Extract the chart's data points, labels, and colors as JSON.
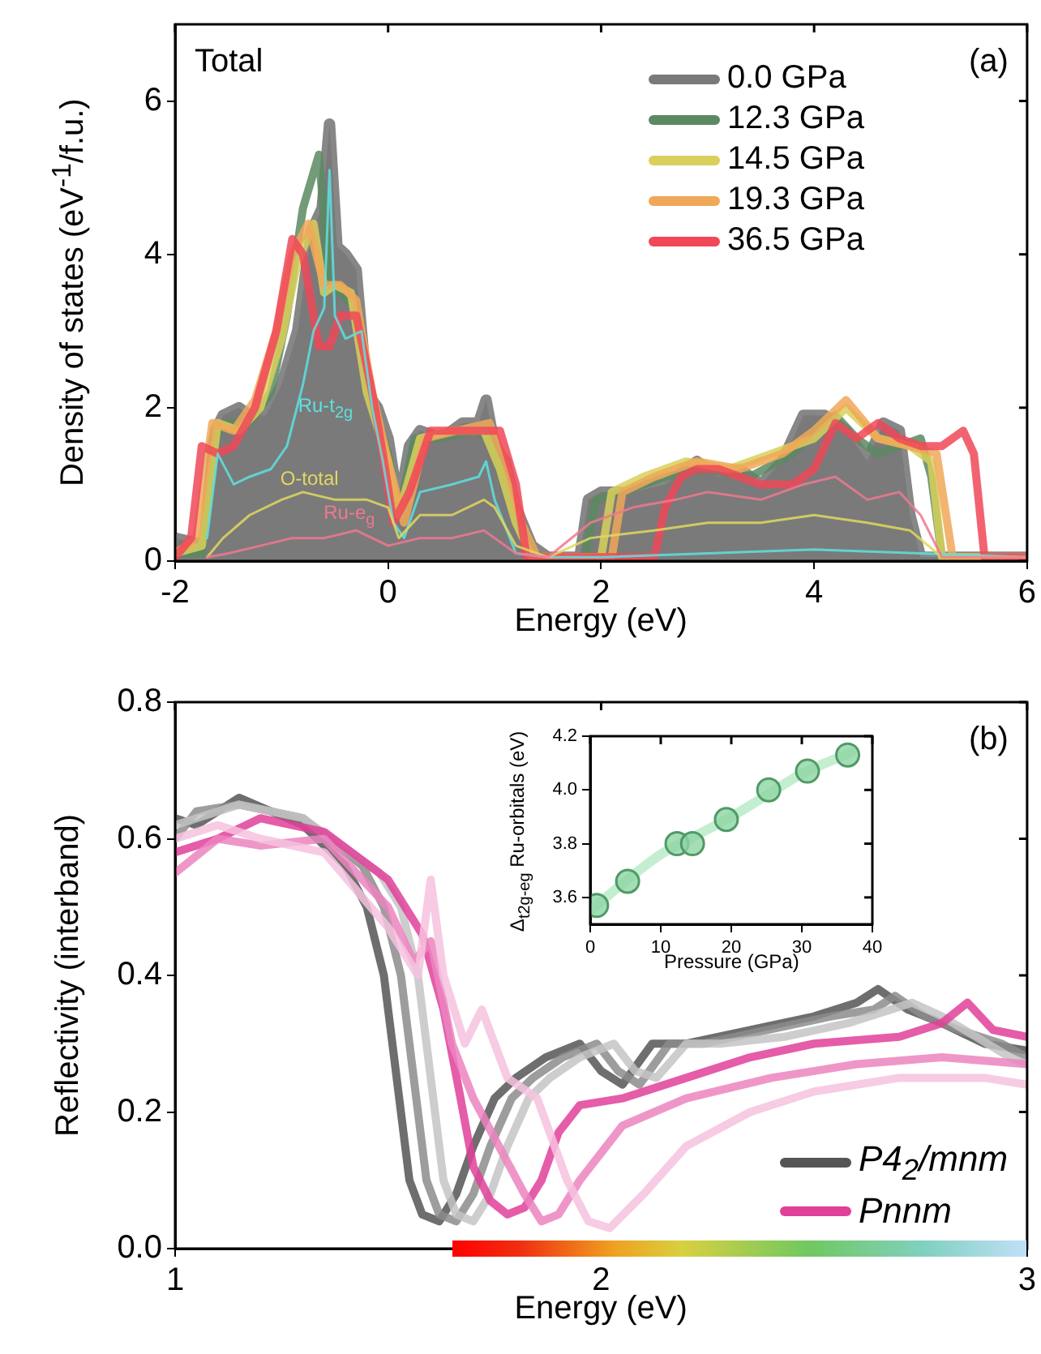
{
  "chart_data": [
    {
      "type": "line",
      "xlabel": "Energy (eV)",
      "ylabel": "Density of states (eV$^{-1}$/f.u.)",
      "xlim": [
        -2,
        6
      ],
      "xticks": [
        -2,
        0,
        2,
        4,
        6
      ],
      "ylim": [
        0,
        7
      ],
      "yticks": [
        0,
        2,
        4,
        6
      ],
      "legend": "top right",
      "annotations": [
        "Total",
        "(a)"
      ],
      "series": [
        {
          "type": "area",
          "name": "0.0 GPa",
          "color": "#7a7a7a",
          "x": [
            -2,
            -1.7,
            -1.62,
            -1.55,
            -1.4,
            -1.3,
            -1.15,
            -1.0,
            -0.85,
            -0.72,
            -0.62,
            -0.55,
            -0.48,
            -0.4,
            -0.3,
            -0.2,
            -0.1,
            0.0,
            0.1,
            0.2,
            0.3,
            0.5,
            0.7,
            0.85,
            0.92,
            1.0,
            1.1,
            1.2,
            1.35,
            1.5,
            1.8,
            1.88,
            2.0,
            2.3,
            2.6,
            2.9,
            3.1,
            3.3,
            3.5,
            3.7,
            3.9,
            4.1,
            4.3,
            4.5,
            4.65,
            4.8,
            4.9,
            5.0,
            6
          ],
          "values": [
            0.3,
            0.2,
            1.7,
            1.9,
            2.0,
            1.9,
            1.9,
            2.3,
            3.0,
            4.3,
            4.6,
            5.7,
            4.1,
            4.0,
            3.8,
            2.2,
            2.0,
            1.6,
            0.7,
            1.5,
            1.7,
            1.6,
            1.8,
            1.8,
            2.1,
            1.5,
            1.3,
            0.7,
            0.2,
            0.05,
            0.05,
            0.8,
            0.9,
            0.9,
            1.0,
            1.3,
            1.1,
            1.2,
            1.0,
            1.3,
            1.9,
            1.9,
            1.7,
            1.3,
            1.8,
            1.7,
            0.6,
            0.05,
            0.05
          ]
        },
        {
          "name": "12.3 GPa",
          "color": "#5a8a62",
          "x": [
            -2,
            -1.75,
            -1.65,
            -1.5,
            -1.3,
            -1.1,
            -0.95,
            -0.8,
            -0.65,
            -0.55,
            -0.45,
            -0.3,
            -0.15,
            0.0,
            0.1,
            0.25,
            0.5,
            0.8,
            0.95,
            1.1,
            1.25,
            1.4,
            1.6,
            1.85,
            1.95,
            2.2,
            2.6,
            3.0,
            3.4,
            3.8,
            4.0,
            4.2,
            4.4,
            4.6,
            4.8,
            5.0,
            5.1,
            5.2,
            6
          ],
          "values": [
            0.1,
            0.1,
            1.6,
            1.8,
            1.8,
            2.2,
            3.2,
            4.6,
            5.3,
            3.6,
            3.5,
            3.3,
            2.0,
            1.4,
            0.6,
            1.6,
            1.6,
            1.7,
            1.6,
            1.0,
            0.4,
            0.05,
            0.05,
            0.05,
            0.8,
            0.9,
            1.1,
            1.2,
            1.1,
            1.4,
            1.7,
            1.9,
            1.6,
            1.4,
            1.5,
            1.6,
            1.1,
            0.05,
            0.05
          ]
        },
        {
          "name": "14.5 GPa",
          "color": "#d8d05a",
          "x": [
            -2,
            -1.75,
            -1.6,
            -1.4,
            -1.2,
            -1.0,
            -0.85,
            -0.7,
            -0.6,
            -0.5,
            -0.35,
            -0.2,
            0.0,
            0.1,
            0.3,
            0.6,
            0.9,
            1.05,
            1.2,
            1.35,
            1.6,
            2.0,
            2.1,
            2.4,
            2.8,
            3.2,
            3.6,
            4.0,
            4.3,
            4.6,
            4.9,
            5.1,
            5.2,
            6
          ],
          "values": [
            0.1,
            0.2,
            1.8,
            1.7,
            2.0,
            2.9,
            3.9,
            4.4,
            3.5,
            3.6,
            3.5,
            2.2,
            1.3,
            0.6,
            1.6,
            1.7,
            1.7,
            1.2,
            0.5,
            0.05,
            0.05,
            0.05,
            0.9,
            1.1,
            1.3,
            1.2,
            1.4,
            1.6,
            2.0,
            1.6,
            1.5,
            1.3,
            0.05,
            0.05
          ]
        },
        {
          "name": "19.3 GPa",
          "color": "#f0a858",
          "x": [
            -2,
            -1.8,
            -1.65,
            -1.45,
            -1.25,
            -1.05,
            -0.9,
            -0.75,
            -0.6,
            -0.45,
            -0.3,
            -0.15,
            0.0,
            0.15,
            0.35,
            0.65,
            0.95,
            1.1,
            1.25,
            1.4,
            1.7,
            2.1,
            2.2,
            2.5,
            2.9,
            3.3,
            3.7,
            4.0,
            4.3,
            4.6,
            4.9,
            5.15,
            5.3,
            6
          ],
          "values": [
            0.1,
            0.3,
            1.8,
            1.7,
            2.1,
            3.0,
            4.0,
            4.4,
            3.6,
            3.6,
            3.4,
            2.2,
            1.3,
            0.5,
            1.6,
            1.7,
            1.8,
            1.3,
            0.5,
            0.05,
            0.05,
            0.05,
            0.9,
            1.1,
            1.3,
            1.2,
            1.4,
            1.7,
            2.1,
            1.6,
            1.5,
            1.4,
            0.05,
            0.05
          ]
        },
        {
          "name": "36.5 GPa",
          "color": "#f04858",
          "x": [
            -2,
            -1.85,
            -1.75,
            -1.6,
            -1.45,
            -1.25,
            -1.05,
            -0.9,
            -0.8,
            -0.65,
            -0.55,
            -0.45,
            -0.3,
            -0.15,
            -0.05,
            0.05,
            0.2,
            0.4,
            0.7,
            0.9,
            1.05,
            1.2,
            1.3,
            1.5,
            2.5,
            2.6,
            2.75,
            2.9,
            3.1,
            3.3,
            3.5,
            3.8,
            4.0,
            4.2,
            4.4,
            4.6,
            4.8,
            5.0,
            5.2,
            5.4,
            5.5,
            5.6,
            6
          ],
          "values": [
            0.05,
            0.3,
            1.5,
            1.4,
            1.5,
            2.0,
            3.0,
            4.2,
            4.0,
            2.8,
            2.8,
            3.2,
            3.2,
            2.2,
            1.4,
            0.5,
            0.9,
            1.7,
            1.7,
            1.7,
            1.7,
            1.0,
            0.05,
            0.05,
            0.05,
            0.7,
            1.1,
            1.2,
            1.2,
            1.1,
            1.0,
            1.0,
            1.2,
            1.8,
            1.6,
            1.8,
            1.6,
            1.5,
            1.5,
            1.7,
            1.4,
            0.05,
            0.05
          ]
        },
        {
          "name": "Ru-t$_{2g}$",
          "color": "#5ee0e0",
          "x": [
            -1.7,
            -1.6,
            -1.45,
            -1.3,
            -1.1,
            -0.95,
            -0.8,
            -0.7,
            -0.6,
            -0.55,
            -0.5,
            -0.4,
            -0.25,
            -0.15,
            -0.05,
            0.05,
            0.15,
            0.3,
            0.6,
            0.85,
            0.92,
            1.0,
            1.2,
            1.5,
            2.0,
            3.0,
            4.0,
            5.0,
            6
          ],
          "values": [
            0.3,
            1.4,
            1.0,
            1.1,
            1.2,
            1.5,
            2.3,
            3.0,
            3.3,
            5.1,
            3.2,
            2.9,
            3.0,
            2.0,
            1.3,
            0.5,
            0.3,
            0.9,
            1.0,
            1.1,
            1.3,
            0.8,
            0.1,
            0.05,
            0.05,
            0.1,
            0.15,
            0.1,
            0.05
          ]
        },
        {
          "name": "O-total",
          "color": "#e0d860",
          "x": [
            -1.7,
            -1.55,
            -1.3,
            -1.0,
            -0.8,
            -0.5,
            -0.2,
            0.0,
            0.1,
            0.3,
            0.6,
            0.9,
            1.0,
            1.2,
            1.5,
            1.9,
            2.5,
            3.0,
            3.5,
            4.0,
            4.5,
            4.9,
            5.2,
            6
          ],
          "values": [
            0.05,
            0.3,
            0.6,
            0.8,
            0.9,
            0.8,
            0.8,
            0.7,
            0.3,
            0.6,
            0.6,
            0.8,
            0.7,
            0.2,
            0.05,
            0.3,
            0.4,
            0.5,
            0.5,
            0.6,
            0.5,
            0.4,
            0.05,
            0.05
          ]
        },
        {
          "name": "Ru-e$_{g}$",
          "color": "#f07890",
          "x": [
            -1.7,
            -1.5,
            -1.2,
            -0.9,
            -0.6,
            -0.3,
            0.0,
            0.3,
            0.6,
            0.9,
            1.2,
            1.5,
            1.9,
            2.3,
            2.7,
            3.0,
            3.5,
            3.9,
            4.2,
            4.5,
            4.8,
            5.0,
            5.2,
            6
          ],
          "values": [
            0.05,
            0.1,
            0.2,
            0.3,
            0.3,
            0.4,
            0.2,
            0.3,
            0.3,
            0.4,
            0.1,
            0.05,
            0.5,
            0.7,
            0.8,
            0.9,
            0.8,
            1.0,
            1.1,
            0.8,
            0.9,
            0.6,
            0.05,
            0.05
          ]
        }
      ]
    },
    {
      "type": "line",
      "xlabel": "Energy (eV)",
      "ylabel": "Reflectivity (interband)",
      "xlim": [
        1,
        3
      ],
      "xticks": [
        1,
        2,
        3
      ],
      "ylim": [
        0,
        0.8
      ],
      "yticks": [
        {
          "value": 0,
          "label": "0.0"
        },
        0.2,
        0.4,
        0.6,
        0.8
      ],
      "legend": "bottom right",
      "annotations": [
        "(b)"
      ],
      "series": [
        {
          "name": "P4$_{2}$/mnm",
          "color": "#555555",
          "x": [
            1.0,
            1.05,
            1.15,
            1.3,
            1.4,
            1.45,
            1.49,
            1.52,
            1.55,
            1.58,
            1.62,
            1.66,
            1.7,
            1.75,
            1.8,
            1.87,
            1.95,
            2.0,
            2.05,
            2.12,
            2.2,
            2.35,
            2.5,
            2.6,
            2.65,
            2.72,
            2.8,
            2.9,
            3.0
          ],
          "values": [
            0.63,
            0.62,
            0.66,
            0.62,
            0.56,
            0.5,
            0.4,
            0.25,
            0.1,
            0.05,
            0.04,
            0.08,
            0.15,
            0.22,
            0.25,
            0.28,
            0.3,
            0.26,
            0.24,
            0.3,
            0.3,
            0.32,
            0.34,
            0.36,
            0.38,
            0.35,
            0.33,
            0.3,
            0.29
          ]
        },
        {
          "color": "#8c8c8c",
          "x": [
            1.0,
            1.05,
            1.15,
            1.3,
            1.44,
            1.49,
            1.53,
            1.56,
            1.59,
            1.62,
            1.66,
            1.7,
            1.74,
            1.79,
            1.84,
            1.91,
            1.99,
            2.04,
            2.09,
            2.16,
            2.24,
            2.39,
            2.54,
            2.64,
            2.69,
            2.76,
            2.84,
            2.94,
            3.0
          ],
          "values": [
            0.6,
            0.64,
            0.65,
            0.63,
            0.56,
            0.5,
            0.4,
            0.25,
            0.1,
            0.05,
            0.04,
            0.08,
            0.15,
            0.22,
            0.25,
            0.28,
            0.3,
            0.26,
            0.24,
            0.3,
            0.3,
            0.32,
            0.34,
            0.35,
            0.37,
            0.34,
            0.32,
            0.3,
            0.28
          ]
        },
        {
          "color": "#c4c4c4",
          "x": [
            1.0,
            1.05,
            1.15,
            1.3,
            1.48,
            1.53,
            1.57,
            1.6,
            1.63,
            1.66,
            1.7,
            1.74,
            1.78,
            1.83,
            1.88,
            1.95,
            2.03,
            2.08,
            2.13,
            2.2,
            2.28,
            2.43,
            2.58,
            2.68,
            2.73,
            2.8,
            2.88,
            2.96,
            3.0
          ],
          "values": [
            0.62,
            0.63,
            0.65,
            0.63,
            0.55,
            0.5,
            0.4,
            0.25,
            0.1,
            0.05,
            0.04,
            0.08,
            0.15,
            0.22,
            0.25,
            0.28,
            0.3,
            0.26,
            0.25,
            0.3,
            0.3,
            0.31,
            0.33,
            0.35,
            0.36,
            0.34,
            0.31,
            0.28,
            0.27
          ]
        },
        {
          "name": "Pnnm",
          "color": "#e0409a",
          "x": [
            1.0,
            1.1,
            1.2,
            1.35,
            1.5,
            1.58,
            1.63,
            1.67,
            1.7,
            1.74,
            1.78,
            1.82,
            1.86,
            1.9,
            1.95,
            2.05,
            2.2,
            2.35,
            2.5,
            2.7,
            2.8,
            2.86,
            2.92,
            3.0
          ],
          "values": [
            0.58,
            0.6,
            0.63,
            0.61,
            0.54,
            0.46,
            0.35,
            0.22,
            0.12,
            0.07,
            0.05,
            0.06,
            0.1,
            0.17,
            0.21,
            0.22,
            0.25,
            0.28,
            0.3,
            0.31,
            0.33,
            0.36,
            0.32,
            0.31
          ]
        },
        {
          "color": "#ec84c0",
          "x": [
            1.0,
            1.1,
            1.2,
            1.35,
            1.5,
            1.56,
            1.6,
            1.65,
            1.7,
            1.76,
            1.82,
            1.86,
            1.9,
            1.95,
            2.05,
            2.2,
            2.4,
            2.6,
            2.8,
            3.0
          ],
          "values": [
            0.55,
            0.6,
            0.59,
            0.6,
            0.5,
            0.42,
            0.45,
            0.3,
            0.22,
            0.15,
            0.08,
            0.04,
            0.05,
            0.1,
            0.18,
            0.22,
            0.25,
            0.27,
            0.28,
            0.27
          ]
        },
        {
          "color": "#f6c2de",
          "x": [
            1.0,
            1.1,
            1.2,
            1.35,
            1.5,
            1.57,
            1.6,
            1.63,
            1.68,
            1.72,
            1.78,
            1.85,
            1.92,
            1.97,
            2.02,
            2.1,
            2.2,
            2.35,
            2.5,
            2.7,
            2.9,
            3.0
          ],
          "values": [
            0.6,
            0.62,
            0.6,
            0.58,
            0.47,
            0.4,
            0.54,
            0.4,
            0.3,
            0.35,
            0.25,
            0.22,
            0.1,
            0.04,
            0.03,
            0.08,
            0.15,
            0.2,
            0.23,
            0.25,
            0.25,
            0.24
          ]
        }
      ]
    },
    {
      "type": "scatter",
      "xlabel": "Pressure (GPa)",
      "ylabel": "Δ$_{t2g-eg}$ Ru-orbitals (eV)",
      "xlim": [
        0,
        40
      ],
      "xticks": [
        0,
        10,
        20,
        30,
        40
      ],
      "ylim": [
        3.5,
        4.2
      ],
      "yticks": [
        3.6,
        3.8,
        {
          "value": 4,
          "label": "4.0"
        },
        4.2
      ],
      "series": [
        {
          "type": "line",
          "marker": "none",
          "color": "#b8ecc8",
          "x": [
            0,
            5,
            10,
            15,
            20,
            25,
            30,
            37
          ],
          "values": [
            3.55,
            3.66,
            3.76,
            3.83,
            3.9,
            3.98,
            4.06,
            4.14
          ]
        },
        {
          "marker": "circle",
          "color": "#8fd4a4",
          "x": [
            0.9,
            5.3,
            12.3,
            14.5,
            19.3,
            25.3,
            30.8,
            36.5
          ],
          "values": [
            3.57,
            3.66,
            3.8,
            3.8,
            3.89,
            4.0,
            4.07,
            4.13
          ]
        }
      ]
    }
  ]
}
